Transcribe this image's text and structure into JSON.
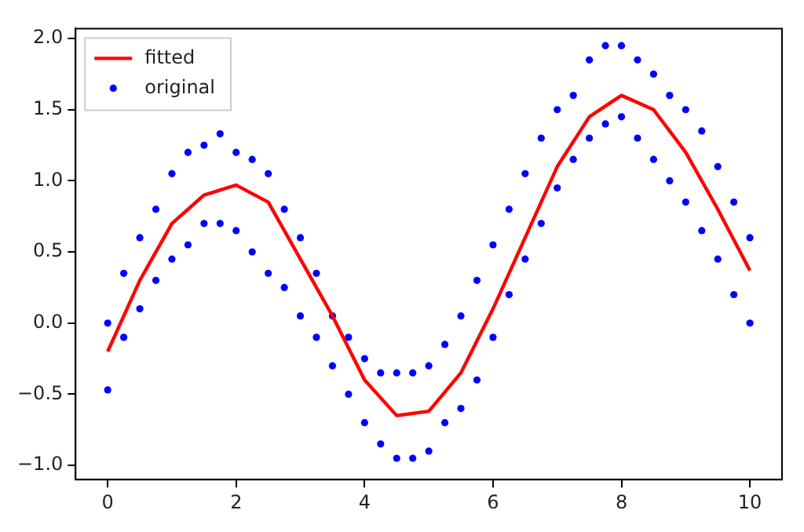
{
  "chart_data": {
    "type": "scatter",
    "xlim": [
      -0.5,
      10.5
    ],
    "xticks": [
      0,
      2,
      4,
      6,
      8,
      10
    ],
    "ylim": [
      -1.1,
      2.07
    ],
    "yticks": [
      {
        "value": -1,
        "label": "−1.0"
      },
      {
        "value": -0.5,
        "label": "−0.5"
      },
      {
        "value": 0,
        "label": "0.0"
      },
      {
        "value": 0.5,
        "label": "0.5"
      },
      {
        "value": 1,
        "label": "1.0"
      },
      {
        "value": 1.5,
        "label": "1.5"
      },
      {
        "value": 2,
        "label": "2.0"
      }
    ],
    "grid": false,
    "legend": "top left",
    "series": [
      {
        "name": "fitted",
        "type": "line",
        "color": "#ff0000",
        "marker": "none",
        "line_style": "solid",
        "x": [
          0,
          0.5,
          1,
          1.5,
          2,
          2.5,
          3,
          3.5,
          4,
          4.5,
          5,
          5.5,
          6,
          6.5,
          7,
          7.5,
          8,
          8.5,
          9,
          9.5,
          10
        ],
        "values": [
          -0.2,
          0.3,
          0.7,
          0.9,
          0.97,
          0.85,
          0.45,
          0.05,
          -0.4,
          -0.65,
          -0.62,
          -0.35,
          0.1,
          0.6,
          1.1,
          1.45,
          1.6,
          1.5,
          1.2,
          0.8,
          0.37
        ]
      },
      {
        "name": "original",
        "color": "#0000ff",
        "marker": "circle",
        "x": [
          0,
          0,
          0.25,
          0.25,
          0.5,
          0.5,
          0.75,
          0.75,
          1,
          1,
          1.25,
          1.25,
          1.5,
          1.5,
          1.75,
          1.75,
          2,
          2,
          2.25,
          2.25,
          2.5,
          2.5,
          2.75,
          2.75,
          3,
          3,
          3.25,
          3.25,
          3.5,
          3.5,
          3.75,
          3.75,
          4,
          4,
          4.25,
          4.25,
          4.5,
          4.5,
          4.75,
          4.75,
          5,
          5,
          5.25,
          5.25,
          5.5,
          5.5,
          5.75,
          5.75,
          6,
          6,
          6.25,
          6.25,
          6.5,
          6.5,
          6.75,
          6.75,
          7,
          7,
          7.25,
          7.25,
          7.5,
          7.5,
          7.75,
          7.75,
          8,
          8,
          8.25,
          8.25,
          8.5,
          8.5,
          8.75,
          8.75,
          9,
          9,
          9.25,
          9.25,
          9.5,
          9.5,
          9.75,
          9.75,
          10,
          10
        ],
        "values": [
          0.0,
          -0.47,
          0.35,
          -0.1,
          0.6,
          0.1,
          0.8,
          0.3,
          1.05,
          0.45,
          1.2,
          0.55,
          1.25,
          0.7,
          1.33,
          0.7,
          1.2,
          0.65,
          1.15,
          0.5,
          1.05,
          0.35,
          0.8,
          0.25,
          0.6,
          0.05,
          0.35,
          -0.1,
          0.05,
          -0.3,
          -0.1,
          -0.5,
          -0.25,
          -0.7,
          -0.35,
          -0.85,
          -0.35,
          -0.95,
          -0.35,
          -0.95,
          -0.3,
          -0.9,
          -0.15,
          -0.7,
          0.05,
          -0.6,
          0.3,
          -0.4,
          0.55,
          -0.1,
          0.8,
          0.2,
          1.05,
          0.45,
          1.3,
          0.7,
          1.5,
          0.95,
          1.6,
          1.15,
          1.85,
          1.3,
          1.95,
          1.4,
          1.95,
          1.45,
          1.85,
          1.3,
          1.75,
          1.15,
          1.6,
          1.0,
          1.5,
          0.85,
          1.35,
          0.65,
          1.1,
          0.45,
          0.85,
          0.2,
          0.6,
          0.0
        ]
      }
    ]
  }
}
